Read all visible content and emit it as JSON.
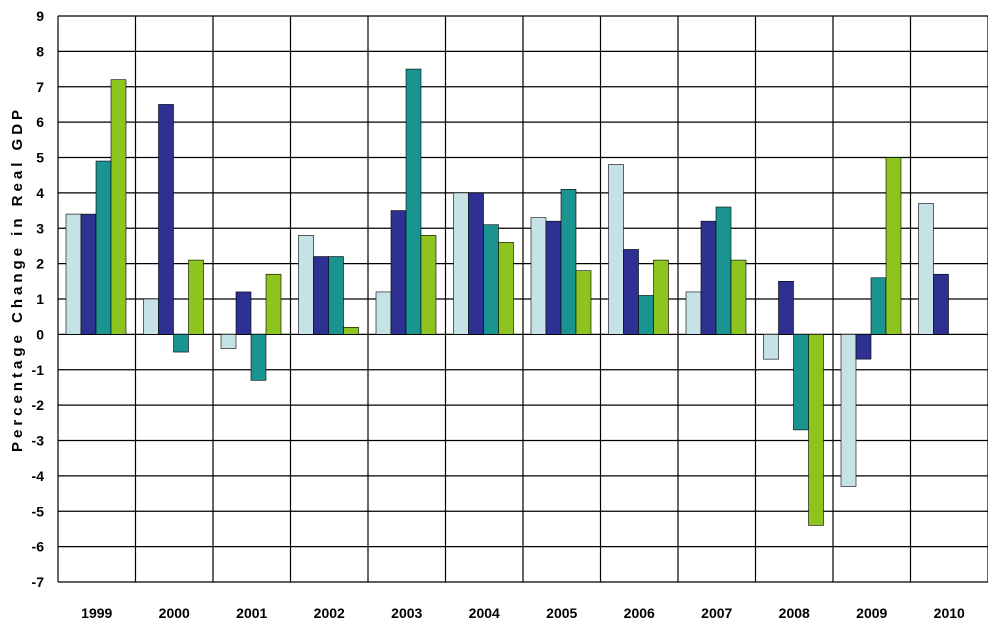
{
  "chart_data": {
    "type": "bar",
    "title": "",
    "xlabel": "",
    "ylabel": "Percentage Change in Real GDP",
    "ylim": [
      -7,
      9
    ],
    "yticks": [
      9,
      8,
      7,
      6,
      5,
      4,
      3,
      2,
      1,
      0,
      -1,
      -2,
      -3,
      -4,
      -5,
      -6,
      -7
    ],
    "grid": true,
    "legend": "none",
    "categories": [
      "1999",
      "2000",
      "2001",
      "2002",
      "2003",
      "2004",
      "2005",
      "2006",
      "2007",
      "2008",
      "2009",
      "2010"
    ],
    "series": [
      {
        "color": "#c5e3e6",
        "values": [
          3.4,
          1.0,
          -0.4,
          2.8,
          1.2,
          4.0,
          3.3,
          4.8,
          1.2,
          -0.7,
          -4.3,
          3.7
        ]
      },
      {
        "color": "#2e3192",
        "values": [
          3.4,
          6.5,
          1.2,
          2.2,
          3.5,
          4.0,
          3.2,
          2.4,
          3.2,
          1.5,
          -0.7,
          1.7
        ]
      },
      {
        "color": "#1a9490",
        "values": [
          4.9,
          -0.5,
          -1.3,
          2.2,
          7.5,
          3.1,
          4.1,
          1.1,
          3.6,
          -2.7,
          1.6,
          null
        ]
      },
      {
        "color": "#8dc41f",
        "values": [
          7.2,
          2.1,
          1.7,
          0.2,
          2.8,
          2.6,
          1.8,
          2.1,
          2.1,
          -5.4,
          5.0,
          null
        ]
      }
    ]
  }
}
